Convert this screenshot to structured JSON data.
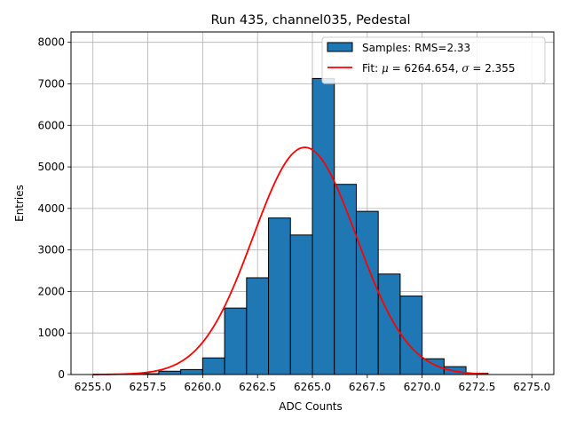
{
  "chart_data": {
    "type": "bar",
    "title": "Run 435, channel035, Pedestal",
    "xlabel": "ADC Counts",
    "ylabel": "Entries",
    "xlim": [
      6254.0,
      6276.0
    ],
    "ylim": [
      0,
      8250
    ],
    "xticks": [
      6255.0,
      6257.5,
      6260.0,
      6262.5,
      6265.0,
      6267.5,
      6270.0,
      6272.5,
      6275.0
    ],
    "xtick_labels": [
      "6255.0",
      "6257.5",
      "6260.0",
      "6262.5",
      "6265.0",
      "6267.5",
      "6270.0",
      "6272.5",
      "6275.0"
    ],
    "yticks": [
      0,
      1000,
      2000,
      3000,
      4000,
      5000,
      6000,
      7000,
      8000
    ],
    "ytick_labels": [
      "0",
      "1000",
      "2000",
      "3000",
      "4000",
      "5000",
      "6000",
      "7000",
      "8000"
    ],
    "grid": true,
    "legend_position": "top-right",
    "histogram": {
      "name": "Samples: RMS=2.33",
      "color": "#1f77b4",
      "edge_color": "#000000",
      "bins": [
        {
          "x0": 6257,
          "x1": 6258,
          "value": 20
        },
        {
          "x0": 6258,
          "x1": 6259,
          "value": 80
        },
        {
          "x0": 6259,
          "x1": 6260,
          "value": 120
        },
        {
          "x0": 6260,
          "x1": 6261,
          "value": 400
        },
        {
          "x0": 6261,
          "x1": 6262,
          "value": 1600
        },
        {
          "x0": 6262,
          "x1": 6263,
          "value": 2330
        },
        {
          "x0": 6263,
          "x1": 6264,
          "value": 3770
        },
        {
          "x0": 6264,
          "x1": 6265,
          "value": 3360
        },
        {
          "x0": 6265,
          "x1": 6266,
          "value": 7130
        },
        {
          "x0": 6266,
          "x1": 6267,
          "value": 4580
        },
        {
          "x0": 6267,
          "x1": 6268,
          "value": 3930
        },
        {
          "x0": 6268,
          "x1": 6269,
          "value": 2420
        },
        {
          "x0": 6269,
          "x1": 6270,
          "value": 1890
        },
        {
          "x0": 6270,
          "x1": 6271,
          "value": 380
        },
        {
          "x0": 6271,
          "x1": 6272,
          "value": 190
        },
        {
          "x0": 6272,
          "x1": 6273,
          "value": 30
        }
      ]
    },
    "fit": {
      "name_prefix": "Fit: ",
      "mu_symbol": "μ",
      "mu_text": " = 6264.654, ",
      "sigma_symbol": "σ",
      "sigma_text": " = 2.355",
      "color": "#ff0000",
      "mu": 6264.654,
      "sigma": 2.355,
      "amplitude": 5470,
      "x_range": [
        6255.0,
        6273.0
      ]
    }
  }
}
